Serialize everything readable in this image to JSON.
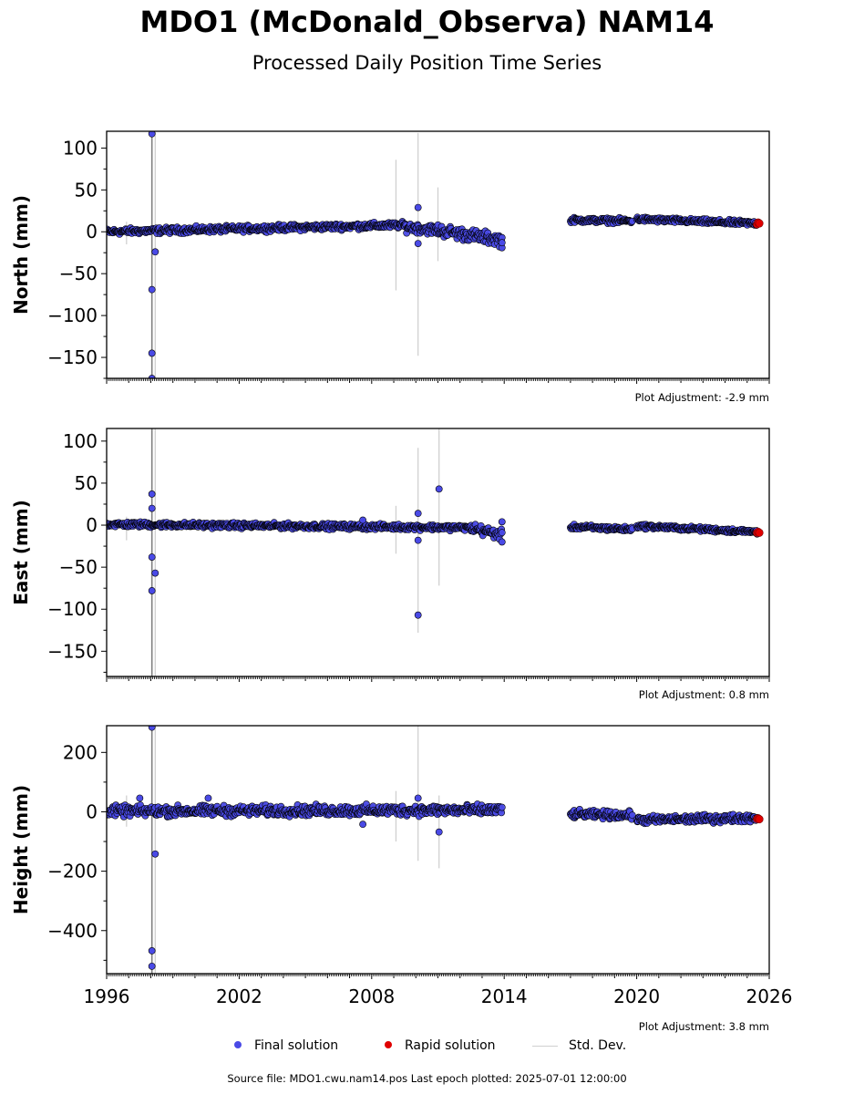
{
  "header": {
    "title": "MDO1 (McDonald_Observa) NAM14",
    "subtitle": "Processed Daily Position Time Series"
  },
  "colors": {
    "final": "#4a4ae6",
    "rapid": "#e00000",
    "stddev": "#d0d0d0",
    "outline": "#000000"
  },
  "legend": {
    "final_label": "Final solution",
    "rapid_label": "Rapid solution",
    "stddev_label": "Std. Dev."
  },
  "footer": {
    "source": "Source file: MDO1.cwu.nam14.pos  Last epoch plotted: 2025-07-01 12:00:00"
  },
  "chart_data": [
    {
      "type": "scatter",
      "component": "north",
      "ylabel": "North (mm)",
      "xlim": [
        1996.0,
        2026.0
      ],
      "ylim": [
        -175,
        120
      ],
      "yticks": [
        100,
        50,
        0,
        -50,
        -100,
        -150
      ],
      "xticks": [
        1996,
        2002,
        2008,
        2014,
        2020,
        2026
      ],
      "show_xtick_labels": false,
      "adjustment": "Plot Adjustment: -2.9 mm",
      "segments": [
        {
          "x0": 1996.0,
          "x1": 2009.5,
          "y0": 0,
          "y1": 8,
          "jitter": 2.5
        },
        {
          "x0": 2009.5,
          "x1": 2011.0,
          "y0": 6,
          "y1": 2,
          "jitter": 4
        },
        {
          "x0": 2011.0,
          "x1": 2013.9,
          "y0": 2,
          "y1": -10,
          "jitter": 5
        },
        {
          "x0": 2017.0,
          "x1": 2019.8,
          "y0": 14,
          "y1": 13,
          "jitter": 2
        },
        {
          "x0": 2020.0,
          "x1": 2025.45,
          "y0": 15,
          "y1": 10,
          "jitter": 2
        }
      ],
      "outliers": [
        [
          1998.05,
          117
        ],
        [
          1998.2,
          -24
        ],
        [
          1998.05,
          -69
        ],
        [
          1998.05,
          -145
        ],
        [
          1998.05,
          -175
        ],
        [
          2010.1,
          29
        ],
        [
          2010.1,
          -14
        ],
        [
          2013.9,
          -19
        ],
        [
          2013.9,
          -13
        ]
      ],
      "errorbars": [
        [
          1998.05,
          -175,
          120
        ],
        [
          1998.2,
          -175,
          120
        ],
        [
          1996.9,
          -15,
          12
        ],
        [
          2009.1,
          -70,
          86
        ],
        [
          2010.1,
          -148,
          118
        ],
        [
          2011.0,
          -35,
          53
        ]
      ],
      "rapid": [
        [
          2025.45,
          9
        ],
        [
          2025.5,
          11
        ],
        [
          2025.55,
          10
        ]
      ]
    },
    {
      "type": "scatter",
      "component": "east",
      "ylabel": "East (mm)",
      "xlim": [
        1996.0,
        2026.0
      ],
      "ylim": [
        -180,
        115
      ],
      "yticks": [
        100,
        50,
        0,
        -50,
        -100,
        -150
      ],
      "xticks": [
        1996,
        2002,
        2008,
        2014,
        2020,
        2026
      ],
      "show_xtick_labels": false,
      "adjustment": "Plot Adjustment: 0.8 mm",
      "segments": [
        {
          "x0": 1996.0,
          "x1": 2012.5,
          "y0": 1,
          "y1": -3,
          "jitter": 2.2
        },
        {
          "x0": 2012.5,
          "x1": 2013.9,
          "y0": -3,
          "y1": -12,
          "jitter": 4
        },
        {
          "x0": 2017.0,
          "x1": 2019.8,
          "y0": -2,
          "y1": -5,
          "jitter": 2
        },
        {
          "x0": 2020.0,
          "x1": 2025.45,
          "y0": -1,
          "y1": -8,
          "jitter": 1.8
        }
      ],
      "outliers": [
        [
          1998.05,
          37
        ],
        [
          1998.05,
          20
        ],
        [
          1998.05,
          -38
        ],
        [
          1998.2,
          -57
        ],
        [
          1998.05,
          -78
        ],
        [
          2007.6,
          6
        ],
        [
          2010.1,
          14
        ],
        [
          2010.1,
          -18
        ],
        [
          2010.1,
          -107
        ],
        [
          2011.05,
          43
        ],
        [
          2013.9,
          4
        ],
        [
          2013.9,
          -20
        ]
      ],
      "errorbars": [
        [
          1998.05,
          -180,
          115
        ],
        [
          1998.2,
          -180,
          115
        ],
        [
          1996.9,
          -18,
          10
        ],
        [
          2009.1,
          -34,
          23
        ],
        [
          2010.1,
          -128,
          92
        ],
        [
          2011.05,
          -72,
          115
        ]
      ],
      "rapid": [
        [
          2025.45,
          -9
        ],
        [
          2025.5,
          -8
        ],
        [
          2025.55,
          -9
        ]
      ]
    },
    {
      "type": "scatter",
      "component": "height",
      "ylabel": "Height (mm)",
      "xlim": [
        1996.0,
        2026.0
      ],
      "ylim": [
        -545,
        290
      ],
      "yticks": [
        200,
        0,
        -200,
        -400
      ],
      "xticks": [
        1996,
        2002,
        2008,
        2014,
        2020,
        2026
      ],
      "show_xtick_labels": true,
      "adjustment": "Plot Adjustment: 3.8 mm",
      "segments": [
        {
          "x0": 1996.0,
          "x1": 2013.9,
          "y0": 2,
          "y1": 6,
          "jitter": 12
        },
        {
          "x0": 2017.0,
          "x1": 2019.8,
          "y0": -8,
          "y1": -12,
          "jitter": 9
        },
        {
          "x0": 2020.0,
          "x1": 2025.45,
          "y0": -28,
          "y1": -20,
          "jitter": 9
        }
      ],
      "outliers": [
        [
          1998.05,
          285
        ],
        [
          1998.2,
          -142
        ],
        [
          1998.05,
          -468
        ],
        [
          1998.05,
          -520
        ],
        [
          1997.5,
          46
        ],
        [
          2000.6,
          46
        ],
        [
          2007.6,
          -42
        ],
        [
          2010.1,
          46
        ],
        [
          2011.05,
          -68
        ]
      ],
      "errorbars": [
        [
          1998.05,
          -545,
          290
        ],
        [
          1998.2,
          -545,
          290
        ],
        [
          1996.9,
          -50,
          55
        ],
        [
          2009.1,
          -100,
          70
        ],
        [
          2010.1,
          -165,
          290
        ],
        [
          2011.05,
          -190,
          55
        ]
      ],
      "rapid": [
        [
          2025.45,
          -24
        ],
        [
          2025.5,
          -22
        ],
        [
          2025.55,
          -25
        ]
      ]
    }
  ]
}
